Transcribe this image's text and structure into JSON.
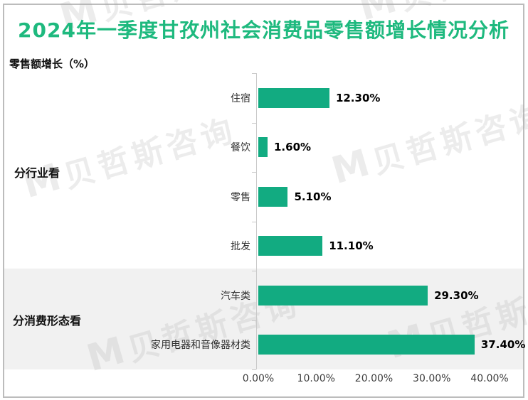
{
  "watermark": {
    "logo": "M",
    "text": "贝哲斯咨询"
  },
  "colors": {
    "bar_green": "#12ab81",
    "title_green": "#1eb97e",
    "band_gray": "#f1f1f1",
    "border_gray": "#bcbcbc",
    "axis_gray": "#c9c9c9"
  },
  "chart_data": {
    "type": "bar",
    "orientation": "horizontal",
    "title": "2024年一季度甘孜州社会消费品零售额增长情况分析",
    "axis_title": "零售额增长（%）",
    "xlabel": "",
    "ylabel": "零售额增长（%）",
    "xlim": [
      0,
      40
    ],
    "grid": false,
    "legend": "none",
    "bar_color": "#12ab81",
    "groups": [
      {
        "label": "分行业看",
        "categories": [
          "住宿",
          "餐饮",
          "零售",
          "批发"
        ],
        "values": [
          12.3,
          1.6,
          5.1,
          11.1
        ]
      },
      {
        "label": "分消费形态看",
        "categories": [
          "汽车类",
          "家用电器和音像器材类"
        ],
        "values": [
          29.3,
          37.4
        ]
      }
    ],
    "rows": [
      {
        "group": "分行业看",
        "category": "住宿",
        "value": 12.3,
        "value_label": "12.30%"
      },
      {
        "group": "分行业看",
        "category": "餐饮",
        "value": 1.6,
        "value_label": "1.60%"
      },
      {
        "group": "分行业看",
        "category": "零售",
        "value": 5.1,
        "value_label": "5.10%"
      },
      {
        "group": "分行业看",
        "category": "批发",
        "value": 11.1,
        "value_label": "11.10%"
      },
      {
        "group": "分消费形态看",
        "category": "汽车类",
        "value": 29.3,
        "value_label": "29.30%"
      },
      {
        "group": "分消费形态看",
        "category": "家用电器和音像器材类",
        "value": 37.4,
        "value_label": "37.40%"
      }
    ],
    "x_ticks": [
      "0.00%",
      "10.00%",
      "20.00%",
      "30.00%",
      "40.00%"
    ]
  }
}
